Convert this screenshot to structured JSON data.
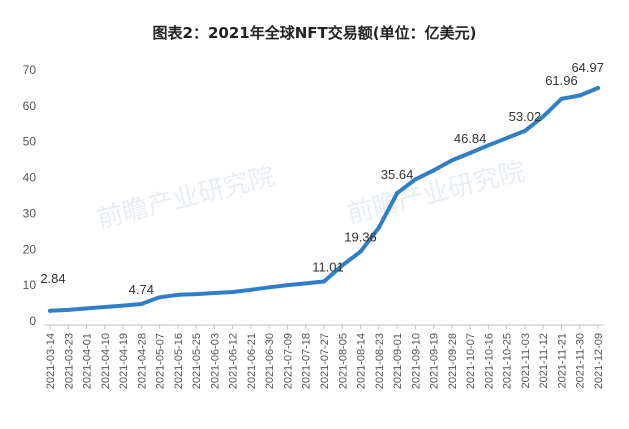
{
  "title": "图表2：2021年全球NFT交易额(单位：亿美元)",
  "watermark": {
    "line1": "前瞻产业研究院",
    "line2": "前瞻产业研究院"
  },
  "chart_data": {
    "type": "line",
    "title": "图表2：2021年全球NFT交易额(单位：亿美元)",
    "xlabel": "",
    "ylabel": "",
    "ylim": [
      0,
      70
    ],
    "yticks": [
      0,
      10,
      20,
      30,
      40,
      50,
      60,
      70
    ],
    "grid": false,
    "legend": "none",
    "line_color": "#2f7fc8",
    "categories": [
      "2021-03-14",
      "2021-03-23",
      "2021-04-01",
      "2021-04-10",
      "2021-04-19",
      "2021-04-28",
      "2021-05-07",
      "2021-05-16",
      "2021-05-25",
      "2021-06-03",
      "2021-06-12",
      "2021-06-21",
      "2021-06-30",
      "2021-07-09",
      "2021-07-18",
      "2021-07-27",
      "2021-08-05",
      "2021-08-14",
      "2021-08-23",
      "2021-09-01",
      "2021-09-10",
      "2021-09-19",
      "2021-09-28",
      "2021-10-07",
      "2021-10-16",
      "2021-10-25",
      "2021-11-03",
      "2021-11-12",
      "2021-11-21",
      "2021-11-30",
      "2021-12-09"
    ],
    "series": [
      {
        "values": [
          2.84,
          3.1,
          3.5,
          3.9,
          4.3,
          4.74,
          6.6,
          7.3,
          7.5,
          7.8,
          8.1,
          8.7,
          9.4,
          10.0,
          10.5,
          11.01,
          15.5,
          19.36,
          26.0,
          35.64,
          39.5,
          42.0,
          44.8,
          46.84,
          49.0,
          51.0,
          53.02,
          57.0,
          61.96,
          62.9,
          64.97
        ]
      }
    ],
    "data_labels": [
      {
        "index": 0,
        "text": "2.84"
      },
      {
        "index": 5,
        "text": "4.74"
      },
      {
        "index": 15,
        "text": "11.01"
      },
      {
        "index": 17,
        "text": "19.36"
      },
      {
        "index": 19,
        "text": "35.64"
      },
      {
        "index": 23,
        "text": "46.84"
      },
      {
        "index": 26,
        "text": "53.02"
      },
      {
        "index": 28,
        "text": "61.96"
      },
      {
        "index": 30,
        "text": "64.97"
      }
    ]
  }
}
